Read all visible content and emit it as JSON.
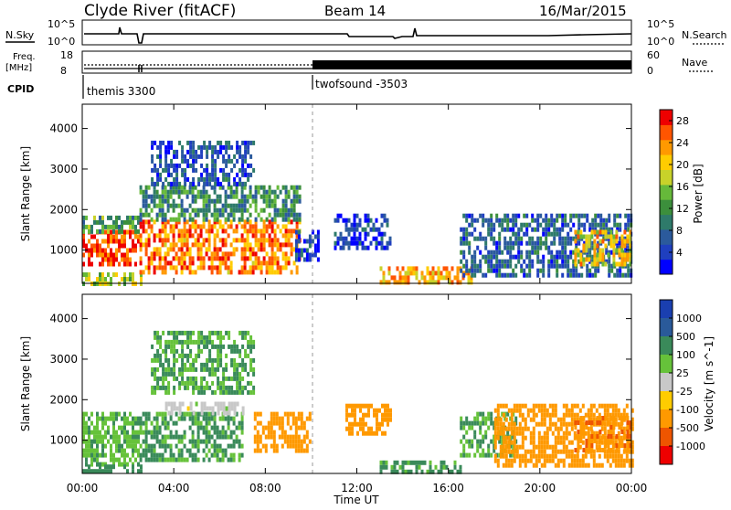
{
  "header": {
    "radar": "Clyde River (fitACF)",
    "beam": "Beam 14",
    "date": "16/Mar/2015"
  },
  "summary": {
    "nsky_label": "N.Sky",
    "nsky_ticks": [
      "10^5",
      "10^0"
    ],
    "nsearch_label": "N.Search",
    "freq_label": "Freq.",
    "freq_unit": "[MHz]",
    "freq_ticks": [
      "18",
      "8"
    ],
    "nave_label": "Nave",
    "nave_ticks": [
      "60",
      "0"
    ],
    "cpid_label": "CPID",
    "cpid_entries": [
      {
        "name": "themis 3300",
        "start": 0
      },
      {
        "name": "twofsound -3503",
        "start": 10
      }
    ]
  },
  "chart_data": [
    {
      "type": "heatmap",
      "panel": "power",
      "xlabel": "Time UT",
      "ylabel": "Slant Range [km]",
      "x_range_hours": [
        0,
        24
      ],
      "y_range_km": [
        180,
        4600
      ],
      "x_ticks": [
        "00:00",
        "04:00",
        "08:00",
        "12:00",
        "16:00",
        "20:00",
        "00:00"
      ],
      "y_ticks": [
        1000,
        2000,
        3000,
        4000
      ],
      "colorbar_label": "Power [dB]",
      "colorbar_ticks": [
        4,
        8,
        12,
        16,
        20,
        24,
        28
      ],
      "colorbar_range": [
        0,
        30
      ],
      "colormap": [
        "#0000ff",
        "#1f3fbf",
        "#2b5a9c",
        "#2e7a6a",
        "#3c8f3c",
        "#66b93a",
        "#c8d22a",
        "#ffcc00",
        "#ff9900",
        "#ff5500",
        "#ee0000"
      ],
      "cpid_change_hour": 10,
      "regions": [
        {
          "t": [
            0,
            2.5
          ],
          "r": [
            600,
            1500
          ],
          "value": 27
        },
        {
          "t": [
            0,
            2.5
          ],
          "r": [
            1500,
            1850
          ],
          "value": 12
        },
        {
          "t": [
            0,
            2.6
          ],
          "r": [
            200,
            450
          ],
          "value": 16
        },
        {
          "t": [
            2.5,
            9.5
          ],
          "r": [
            450,
            1750
          ],
          "value": 24
        },
        {
          "t": [
            2.5,
            9.5
          ],
          "r": [
            1700,
            2600
          ],
          "value": 11
        },
        {
          "t": [
            3,
            7.5
          ],
          "r": [
            2600,
            3700
          ],
          "value": 6
        },
        {
          "t": [
            9.3,
            10.3
          ],
          "r": [
            800,
            1500
          ],
          "value": 5
        },
        {
          "t": [
            11,
            13.5
          ],
          "r": [
            1100,
            1900
          ],
          "value": 5
        },
        {
          "t": [
            13,
            17
          ],
          "r": [
            200,
            600
          ],
          "value": 22
        },
        {
          "t": [
            16.5,
            24
          ],
          "r": [
            350,
            1900
          ],
          "value": 7
        },
        {
          "t": [
            21.5,
            24
          ],
          "r": [
            600,
            1500
          ],
          "value": 20
        }
      ]
    },
    {
      "type": "heatmap",
      "panel": "velocity",
      "xlabel": "Time UT",
      "ylabel": "Slant Range [km]",
      "x_range_hours": [
        0,
        24
      ],
      "y_range_km": [
        180,
        4600
      ],
      "x_ticks": [
        "00:00",
        "04:00",
        "08:00",
        "12:00",
        "16:00",
        "20:00",
        "00:00"
      ],
      "y_ticks": [
        1000,
        2000,
        3000,
        4000
      ],
      "colorbar_label": "Velocity [m s^-1]",
      "colorbar_ticks": [
        "1000",
        "500",
        "100",
        "25",
        "-25",
        "-100",
        "-500",
        "-1000"
      ],
      "colormap": [
        "#1a3fb0",
        "#2a5a9a",
        "#3a8a5a",
        "#66c23a",
        "#c8c8c8",
        "#ffcc00",
        "#ff9900",
        "#ee5500",
        "#ee0000"
      ],
      "cpid_change_hour": 10,
      "regions": [
        {
          "t": [
            0,
            2.5
          ],
          "r": [
            400,
            1700
          ],
          "value": 80
        },
        {
          "t": [
            0,
            2.6
          ],
          "r": [
            200,
            400
          ],
          "value": 300
        },
        {
          "t": [
            2.5,
            7
          ],
          "r": [
            500,
            1700
          ],
          "value": 120
        },
        {
          "t": [
            3.5,
            7
          ],
          "r": [
            1650,
            1950
          ],
          "value": 0
        },
        {
          "t": [
            3,
            7.5
          ],
          "r": [
            2200,
            3700
          ],
          "value": 100
        },
        {
          "t": [
            7.5,
            10
          ],
          "r": [
            700,
            1700
          ],
          "value": -300
        },
        {
          "t": [
            11.5,
            13.5
          ],
          "r": [
            1200,
            1900
          ],
          "value": -300
        },
        {
          "t": [
            13,
            16.5
          ],
          "r": [
            200,
            500
          ],
          "value": 150
        },
        {
          "t": [
            16.5,
            19
          ],
          "r": [
            600,
            1700
          ],
          "value": 100
        },
        {
          "t": [
            18,
            24
          ],
          "r": [
            400,
            1900
          ],
          "value": -300
        },
        {
          "t": [
            21.5,
            24
          ],
          "r": [
            700,
            1600
          ],
          "value": -400
        }
      ]
    }
  ]
}
